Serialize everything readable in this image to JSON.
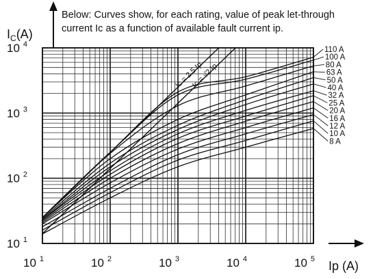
{
  "note": {
    "line1": "Below: Curves show, for each rating, value of peak let-through",
    "line2": "current Ic as a function of available fault current ip."
  },
  "colors": {
    "ink": "#111111",
    "grid": "#2a2a2a",
    "background": "#ffffff"
  },
  "chart_data": {
    "type": "line",
    "scale": "log-log",
    "xlabel": "Ip (A)",
    "ylabel": "I_C(A)",
    "xlim": [
      10,
      100000
    ],
    "ylim": [
      10,
      10000
    ],
    "grid": true,
    "x_ticks": [
      {
        "base": "10",
        "exp": "1",
        "value": 10
      },
      {
        "base": "10",
        "exp": "2",
        "value": 100
      },
      {
        "base": "10",
        "exp": "3",
        "value": 1000
      },
      {
        "base": "10",
        "exp": "4",
        "value": 10000
      },
      {
        "base": "10",
        "exp": "5",
        "value": 100000
      }
    ],
    "y_ticks": [
      {
        "base": "10",
        "exp": "1",
        "value": 10
      },
      {
        "base": "10",
        "exp": "2",
        "value": 100
      },
      {
        "base": "10",
        "exp": "3",
        "value": 1000
      },
      {
        "base": "10",
        "exp": "4",
        "value": 10000
      }
    ],
    "asymptotes": [
      {
        "name": "Ic = 2.5 Ip",
        "factor": 2.5
      },
      {
        "name": "Ic = √2 Ip",
        "factor": 1.414
      }
    ],
    "series": [
      {
        "name": "110 A",
        "x": [
          10,
          100,
          1000,
          10000,
          100000
        ],
        "y": [
          25,
          250,
          2100,
          3600,
          7200
        ]
      },
      {
        "name": "100 A",
        "x": [
          10,
          100,
          1000,
          10000,
          100000
        ],
        "y": [
          25,
          250,
          1900,
          3300,
          6500
        ]
      },
      {
        "name": "80 A",
        "x": [
          10,
          100,
          1000,
          10000,
          100000
        ],
        "y": [
          25,
          240,
          1300,
          2600,
          5300
        ]
      },
      {
        "name": "63 A",
        "x": [
          10,
          100,
          1000,
          10000,
          100000
        ],
        "y": [
          25,
          200,
          800,
          1900,
          4300
        ]
      },
      {
        "name": "50 A",
        "x": [
          10,
          100,
          1000,
          10000,
          100000
        ],
        "y": [
          24,
          170,
          650,
          1600,
          3500
        ]
      },
      {
        "name": "40 A",
        "x": [
          10,
          100,
          1000,
          10000,
          100000
        ],
        "y": [
          23,
          150,
          560,
          1350,
          2800
        ]
      },
      {
        "name": "32 A",
        "x": [
          10,
          100,
          1000,
          10000,
          100000
        ],
        "y": [
          23,
          130,
          480,
          1100,
          2200
        ]
      },
      {
        "name": "25 A",
        "x": [
          10,
          100,
          1000,
          10000,
          100000
        ],
        "y": [
          22,
          115,
          410,
          900,
          1850
        ]
      },
      {
        "name": "20 A",
        "x": [
          10,
          100,
          1000,
          10000,
          100000
        ],
        "y": [
          21,
          100,
          340,
          750,
          1500
        ]
      },
      {
        "name": "16 A",
        "x": [
          10,
          100,
          1000,
          10000,
          100000
        ],
        "y": [
          20,
          85,
          280,
          600,
          1200
        ]
      },
      {
        "name": "12 A",
        "x": [
          10,
          100,
          1000,
          10000,
          100000
        ],
        "y": [
          18,
          70,
          230,
          480,
          950
        ]
      },
      {
        "name": "10 A",
        "x": [
          10,
          100,
          1000,
          10000,
          100000
        ],
        "y": [
          16,
          60,
          190,
          380,
          760
        ]
      },
      {
        "name": "8 A",
        "x": [
          10,
          100,
          1000,
          10000,
          100000
        ],
        "y": [
          14,
          50,
          150,
          300,
          580
        ]
      }
    ]
  }
}
